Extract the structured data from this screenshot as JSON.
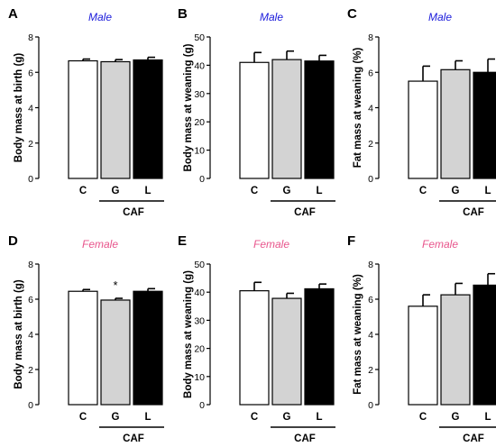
{
  "chart_data": [
    {
      "panel": "A",
      "type": "bar",
      "title": "Male",
      "title_color": "#1a1adb",
      "ylabel": "Body mass at birth (g)",
      "ylim": [
        0,
        8
      ],
      "yticks": [
        0,
        2,
        4,
        6,
        8
      ],
      "categories": [
        "C",
        "G",
        "L"
      ],
      "group_label": "CAF",
      "values": [
        6.65,
        6.6,
        6.7
      ],
      "errors": [
        0.1,
        0.12,
        0.15
      ],
      "bar_colors": [
        "#ffffff",
        "#d3d3d3",
        "#000000"
      ],
      "annotations": []
    },
    {
      "panel": "B",
      "type": "bar",
      "title": "Male",
      "title_color": "#1a1adb",
      "ylabel": "Body mass at weaning (g)",
      "ylim": [
        0,
        50
      ],
      "yticks": [
        0,
        10,
        20,
        30,
        40,
        50
      ],
      "categories": [
        "C",
        "G",
        "L"
      ],
      "group_label": "CAF",
      "values": [
        41,
        42,
        41.5
      ],
      "errors": [
        3.5,
        3,
        2
      ],
      "bar_colors": [
        "#ffffff",
        "#d3d3d3",
        "#000000"
      ],
      "annotations": []
    },
    {
      "panel": "C",
      "type": "bar",
      "title": "Male",
      "title_color": "#1a1adb",
      "ylabel": "Fat mass at weaning (%)",
      "ylim": [
        0,
        8
      ],
      "yticks": [
        0,
        2,
        4,
        6,
        8
      ],
      "categories": [
        "C",
        "G",
        "L"
      ],
      "group_label": "CAF",
      "values": [
        5.5,
        6.15,
        6.0
      ],
      "errors": [
        0.85,
        0.5,
        0.75
      ],
      "bar_colors": [
        "#ffffff",
        "#d3d3d3",
        "#000000"
      ],
      "annotations": []
    },
    {
      "panel": "D",
      "type": "bar",
      "title": "Female",
      "title_color": "#e8558c",
      "ylabel": "Body mass at birth (g)",
      "ylim": [
        0,
        8
      ],
      "yticks": [
        0,
        2,
        4,
        6,
        8
      ],
      "categories": [
        "C",
        "G",
        "L"
      ],
      "group_label": "CAF",
      "values": [
        6.45,
        5.95,
        6.45
      ],
      "errors": [
        0.1,
        0.1,
        0.15
      ],
      "bar_colors": [
        "#ffffff",
        "#d3d3d3",
        "#000000"
      ],
      "annotations": [
        {
          "category": "G",
          "text": "*"
        }
      ]
    },
    {
      "panel": "E",
      "type": "bar",
      "title": "Female",
      "title_color": "#e8558c",
      "ylabel": "Body mass at weaning (g)",
      "ylim": [
        0,
        50
      ],
      "yticks": [
        0,
        10,
        20,
        30,
        40,
        50
      ],
      "categories": [
        "C",
        "G",
        "L"
      ],
      "group_label": "CAF",
      "values": [
        40.5,
        37.8,
        41.2
      ],
      "errors": [
        3,
        1.8,
        1.7
      ],
      "bar_colors": [
        "#ffffff",
        "#d3d3d3",
        "#000000"
      ],
      "annotations": []
    },
    {
      "panel": "F",
      "type": "bar",
      "title": "Female",
      "title_color": "#e8558c",
      "ylabel": "Fat mass at weaning (%)",
      "ylim": [
        0,
        8
      ],
      "yticks": [
        0,
        2,
        4,
        6,
        8
      ],
      "categories": [
        "C",
        "G",
        "L"
      ],
      "group_label": "CAF",
      "values": [
        5.6,
        6.25,
        6.8
      ],
      "errors": [
        0.65,
        0.65,
        0.65
      ],
      "bar_colors": [
        "#ffffff",
        "#d3d3d3",
        "#000000"
      ],
      "annotations": []
    }
  ]
}
